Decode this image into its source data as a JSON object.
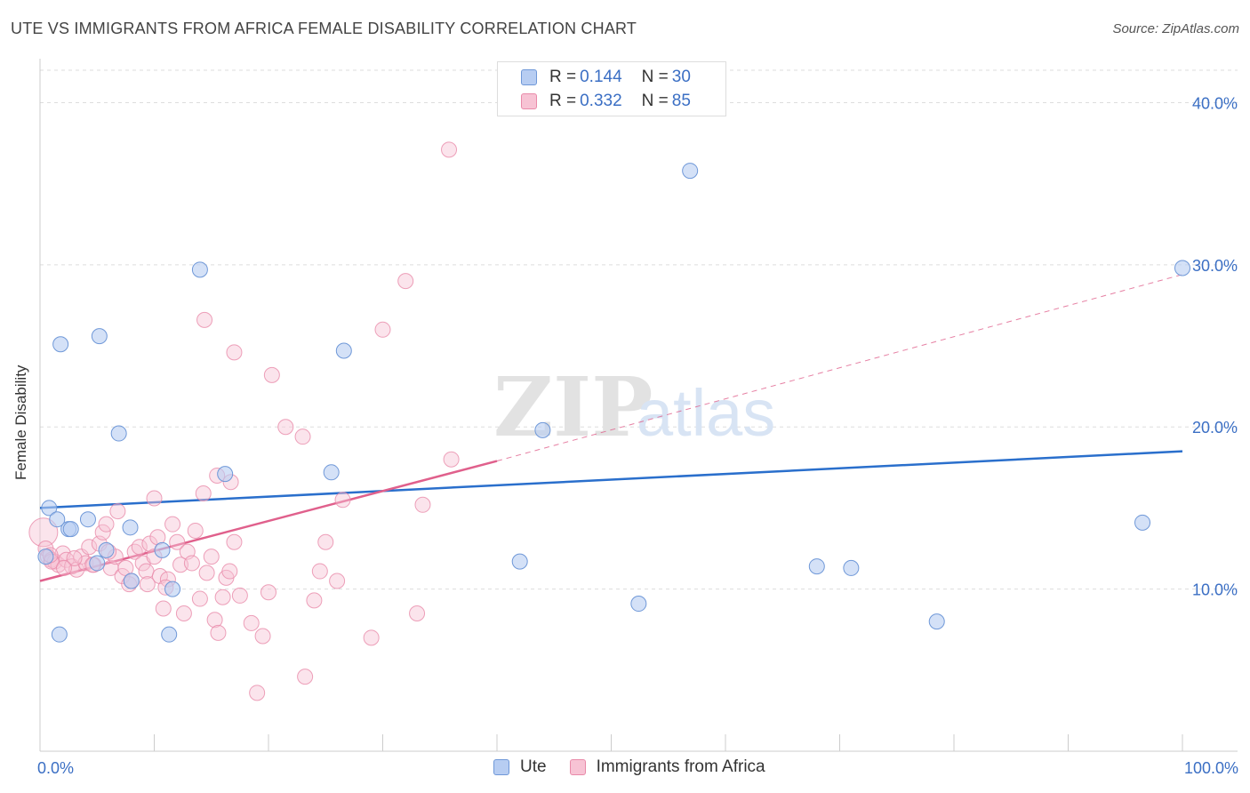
{
  "title": "UTE VS IMMIGRANTS FROM AFRICA FEMALE DISABILITY CORRELATION CHART",
  "source": "Source: ZipAtlas.com",
  "watermark": {
    "zip": "ZIP",
    "atlas": "atlas"
  },
  "legend_top": [
    {
      "r_label": "R =",
      "r_value": "0.144",
      "n_label": "N =",
      "n_value": "30"
    },
    {
      "r_label": "R =",
      "r_value": "0.332",
      "n_label": "N =",
      "n_value": "85"
    }
  ],
  "legend_bottom": [
    "Ute",
    "Immigrants from Africa"
  ],
  "colors": {
    "ute_fill": "#b7cdf2",
    "ute_stroke": "#6f98d8",
    "ute_line": "#2a6fcc",
    "africa_fill": "#f7c3d4",
    "africa_stroke": "#e98aa9",
    "africa_line": "#e0608c",
    "axis_text": "#3b6fc4",
    "grid": "#dddddd"
  },
  "chart_data": {
    "type": "scatter",
    "title": "UTE VS IMMIGRANTS FROM AFRICA FEMALE DISABILITY CORRELATION CHART",
    "xlabel": "",
    "ylabel": "Female Disability",
    "xlim": [
      0,
      100
    ],
    "ylim": [
      0,
      42
    ],
    "x_tick_labels": [
      "0.0%",
      "100.0%"
    ],
    "y_ticks": [
      10,
      20,
      30,
      40
    ],
    "y_tick_labels": [
      "10.0%",
      "20.0%",
      "30.0%",
      "40.0%"
    ],
    "series": [
      {
        "name": "Ute",
        "r": 0.144,
        "n": 30,
        "trend": {
          "x": [
            0,
            100
          ],
          "y": [
            15.0,
            18.5
          ],
          "style": "solid"
        },
        "points": [
          [
            0.8,
            15.0
          ],
          [
            1.5,
            14.3
          ],
          [
            2.5,
            13.7
          ],
          [
            2.7,
            13.7
          ],
          [
            4.2,
            14.3
          ],
          [
            5.0,
            11.6
          ],
          [
            5.8,
            12.4
          ],
          [
            7.9,
            13.8
          ],
          [
            1.8,
            25.1
          ],
          [
            5.2,
            25.6
          ],
          [
            6.9,
            19.6
          ],
          [
            8.0,
            10.5
          ],
          [
            10.7,
            12.4
          ],
          [
            11.6,
            10.0
          ],
          [
            11.3,
            7.2
          ],
          [
            1.7,
            7.2
          ],
          [
            14.0,
            29.7
          ],
          [
            16.2,
            17.1
          ],
          [
            26.6,
            24.7
          ],
          [
            25.5,
            17.2
          ],
          [
            44.0,
            19.8
          ],
          [
            42.0,
            11.7
          ],
          [
            56.9,
            35.8
          ],
          [
            52.4,
            9.1
          ],
          [
            68.0,
            11.4
          ],
          [
            71.0,
            11.3
          ],
          [
            78.5,
            8.0
          ],
          [
            96.5,
            14.1
          ],
          [
            100.0,
            29.8
          ],
          [
            0.5,
            12.0
          ]
        ]
      },
      {
        "name": "Immigrants from Africa",
        "r": 0.332,
        "n": 85,
        "trend": {
          "x": [
            0,
            40
          ],
          "y": [
            10.5,
            17.9
          ],
          "style": "solid",
          "dashed_extension": {
            "x": [
              40,
              100
            ],
            "y": [
              17.9,
              29.4
            ]
          }
        },
        "points": [
          [
            0.3,
            13.5
          ],
          [
            0.5,
            12.5
          ],
          [
            0.7,
            12.0
          ],
          [
            1.0,
            11.8
          ],
          [
            1.3,
            11.7
          ],
          [
            1.6,
            11.5
          ],
          [
            2.0,
            12.2
          ],
          [
            2.3,
            11.8
          ],
          [
            2.8,
            11.4
          ],
          [
            3.2,
            11.2
          ],
          [
            3.6,
            12.0
          ],
          [
            4.0,
            11.6
          ],
          [
            4.3,
            12.6
          ],
          [
            4.7,
            11.5
          ],
          [
            5.2,
            12.8
          ],
          [
            5.5,
            13.5
          ],
          [
            5.8,
            14.0
          ],
          [
            6.2,
            11.3
          ],
          [
            6.6,
            12.0
          ],
          [
            6.8,
            14.8
          ],
          [
            7.2,
            10.8
          ],
          [
            7.5,
            11.3
          ],
          [
            7.8,
            10.3
          ],
          [
            8.0,
            10.5
          ],
          [
            8.3,
            12.3
          ],
          [
            8.7,
            12.6
          ],
          [
            9.0,
            11.6
          ],
          [
            9.3,
            11.1
          ],
          [
            9.6,
            12.8
          ],
          [
            10.0,
            12.0
          ],
          [
            10.3,
            13.2
          ],
          [
            10.5,
            10.8
          ],
          [
            10.8,
            8.8
          ],
          [
            11.2,
            10.6
          ],
          [
            11.6,
            14.0
          ],
          [
            12.0,
            12.9
          ],
          [
            12.3,
            11.5
          ],
          [
            12.6,
            8.5
          ],
          [
            12.9,
            12.3
          ],
          [
            13.3,
            11.6
          ],
          [
            13.6,
            13.6
          ],
          [
            14.0,
            9.4
          ],
          [
            14.3,
            15.9
          ],
          [
            14.6,
            11.0
          ],
          [
            15.0,
            12.0
          ],
          [
            15.3,
            8.1
          ],
          [
            15.6,
            7.3
          ],
          [
            16.0,
            9.5
          ],
          [
            16.3,
            10.7
          ],
          [
            16.6,
            11.1
          ],
          [
            17.0,
            12.9
          ],
          [
            17.5,
            9.6
          ],
          [
            18.5,
            7.9
          ],
          [
            19.0,
            3.6
          ],
          [
            19.5,
            7.1
          ],
          [
            20.0,
            9.8
          ],
          [
            20.3,
            23.2
          ],
          [
            21.5,
            20.0
          ],
          [
            23.0,
            19.4
          ],
          [
            24.0,
            9.3
          ],
          [
            24.5,
            11.1
          ],
          [
            25.0,
            12.9
          ],
          [
            26.0,
            10.5
          ],
          [
            26.5,
            15.5
          ],
          [
            29.0,
            7.0
          ],
          [
            30.0,
            26.0
          ],
          [
            32.0,
            29.0
          ],
          [
            33.5,
            15.2
          ],
          [
            35.8,
            37.1
          ],
          [
            36.0,
            18.0
          ],
          [
            14.4,
            26.6
          ],
          [
            17.0,
            24.6
          ],
          [
            15.5,
            17.0
          ],
          [
            16.7,
            16.6
          ],
          [
            10.0,
            15.6
          ],
          [
            23.2,
            4.6
          ],
          [
            33.0,
            8.5
          ],
          [
            9.4,
            10.3
          ],
          [
            3.0,
            11.9
          ],
          [
            6.0,
            12.3
          ],
          [
            4.6,
            11.5
          ],
          [
            1.0,
            11.7
          ],
          [
            2.1,
            11.3
          ],
          [
            0.9,
            12.1
          ],
          [
            11.0,
            10.1
          ]
        ]
      }
    ]
  }
}
